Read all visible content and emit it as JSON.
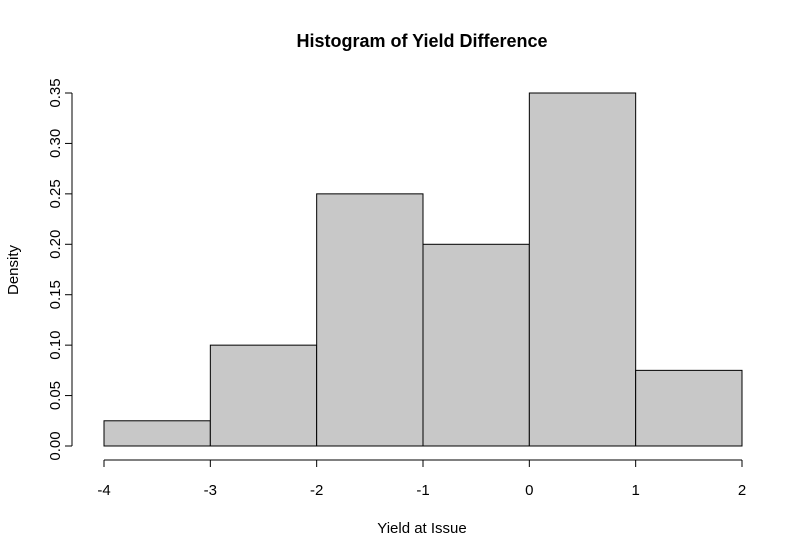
{
  "chart_data": {
    "type": "bar",
    "title": "Histogram of Yield Difference",
    "xlabel": "Yield at Issue",
    "ylabel": "Density",
    "bins": [
      {
        "x0": -4,
        "x1": -3,
        "value": 0.025
      },
      {
        "x0": -3,
        "x1": -2,
        "value": 0.1
      },
      {
        "x0": -2,
        "x1": -1,
        "value": 0.25
      },
      {
        "x0": -1,
        "x1": 0,
        "value": 0.2
      },
      {
        "x0": 0,
        "x1": 1,
        "value": 0.35
      },
      {
        "x0": 1,
        "x1": 2,
        "value": 0.075
      }
    ],
    "xlim": [
      -4,
      2
    ],
    "ylim": [
      0,
      0.35
    ],
    "x_ticks": [
      -4,
      -3,
      -2,
      -1,
      0,
      1,
      2
    ],
    "x_tick_labels": [
      "-4",
      "-3",
      "-2",
      "-1",
      "0",
      "1",
      "2"
    ],
    "y_ticks": [
      0,
      0.05,
      0.1,
      0.15,
      0.2,
      0.25,
      0.3,
      0.35
    ],
    "y_tick_labels": [
      "0.00",
      "0.05",
      "0.10",
      "0.15",
      "0.20",
      "0.25",
      "0.30",
      "0.35"
    ],
    "grid": false,
    "bar_color": "#c8c8c8",
    "edge_color": "#000000"
  }
}
